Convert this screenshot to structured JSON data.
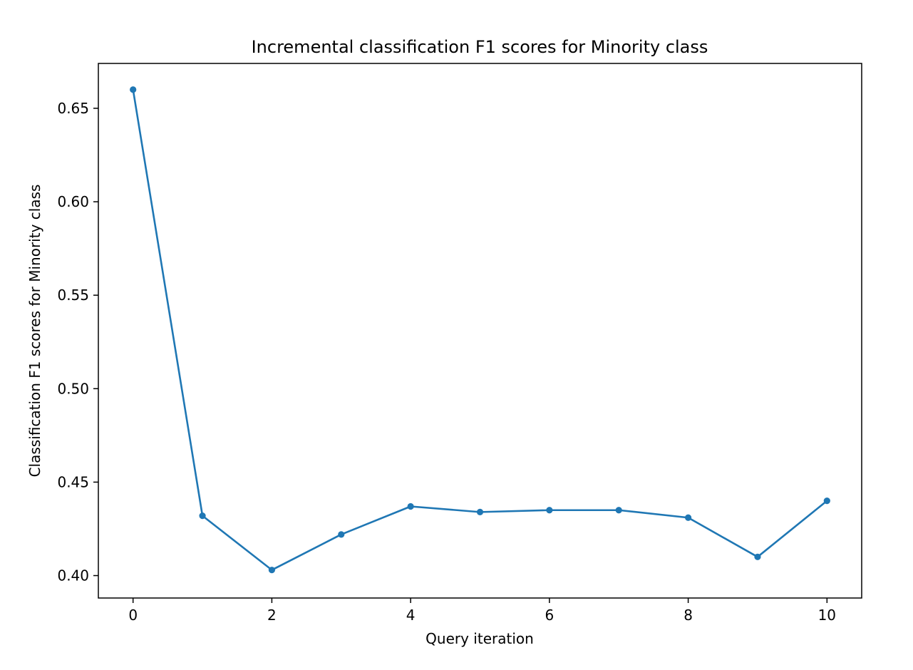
{
  "chart_data": {
    "type": "line",
    "title": "Incremental classification F1 scores for Minority class",
    "xlabel": "Query iteration",
    "ylabel": "Classification F1 scores for Minority class",
    "xlim": [
      -0.5,
      10.5
    ],
    "ylim": [
      0.388,
      0.674
    ],
    "xticks": [
      0,
      2,
      4,
      6,
      8,
      10
    ],
    "xtick_labels": [
      "0",
      "2",
      "4",
      "6",
      "8",
      "10"
    ],
    "yticks": [
      0.4,
      0.45,
      0.5,
      0.55,
      0.6,
      0.65
    ],
    "ytick_labels": [
      "0.40",
      "0.45",
      "0.50",
      "0.55",
      "0.60",
      "0.65"
    ],
    "grid": false,
    "series": [
      {
        "color": "#1f77b4",
        "marker": "circle",
        "x": [
          0,
          1,
          2,
          3,
          4,
          5,
          6,
          7,
          8,
          9,
          10
        ],
        "y": [
          0.66,
          0.432,
          0.403,
          0.422,
          0.437,
          0.434,
          0.435,
          0.435,
          0.431,
          0.41,
          0.44
        ]
      }
    ]
  }
}
